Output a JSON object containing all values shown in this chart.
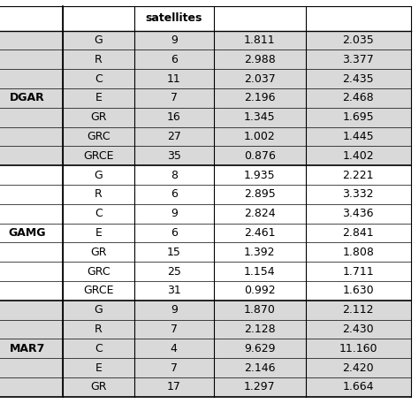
{
  "stations": [
    "DGAR",
    "GAMG",
    "MAR7"
  ],
  "rows": {
    "DGAR": [
      [
        "G",
        "9",
        "1.811",
        "2.035"
      ],
      [
        "R",
        "6",
        "2.988",
        "3.377"
      ],
      [
        "C",
        "11",
        "2.037",
        "2.435"
      ],
      [
        "E",
        "7",
        "2.196",
        "2.468"
      ],
      [
        "GR",
        "16",
        "1.345",
        "1.695"
      ],
      [
        "GRC",
        "27",
        "1.002",
        "1.445"
      ],
      [
        "GRCE",
        "35",
        "0.876",
        "1.402"
      ]
    ],
    "GAMG": [
      [
        "G",
        "8",
        "1.935",
        "2.221"
      ],
      [
        "R",
        "6",
        "2.895",
        "3.332"
      ],
      [
        "C",
        "9",
        "2.824",
        "3.436"
      ],
      [
        "E",
        "6",
        "2.461",
        "2.841"
      ],
      [
        "GR",
        "15",
        "1.392",
        "1.808"
      ],
      [
        "GRC",
        "25",
        "1.154",
        "1.711"
      ],
      [
        "GRCE",
        "31",
        "0.992",
        "1.630"
      ]
    ],
    "MAR7": [
      [
        "G",
        "9",
        "1.870",
        "2.112"
      ],
      [
        "R",
        "7",
        "2.128",
        "2.430"
      ],
      [
        "C",
        "4",
        "9.629",
        "11.160"
      ],
      [
        "E",
        "7",
        "2.146",
        "2.420"
      ],
      [
        "GR",
        "17",
        "1.297",
        "1.664"
      ]
    ]
  },
  "bg_gray": "#d9d9d9",
  "bg_white": "#ffffff",
  "line_color": "#000000",
  "text_color": "#000000",
  "header_text": "satellites",
  "station_bg": {
    "DGAR": "#d9d9d9",
    "GAMG": "#ffffff",
    "MAR7": "#d9d9d9"
  },
  "row_bg": {
    "DGAR": "#d9d9d9",
    "GAMG": "#ffffff",
    "MAR7": "#d9d9d9"
  }
}
